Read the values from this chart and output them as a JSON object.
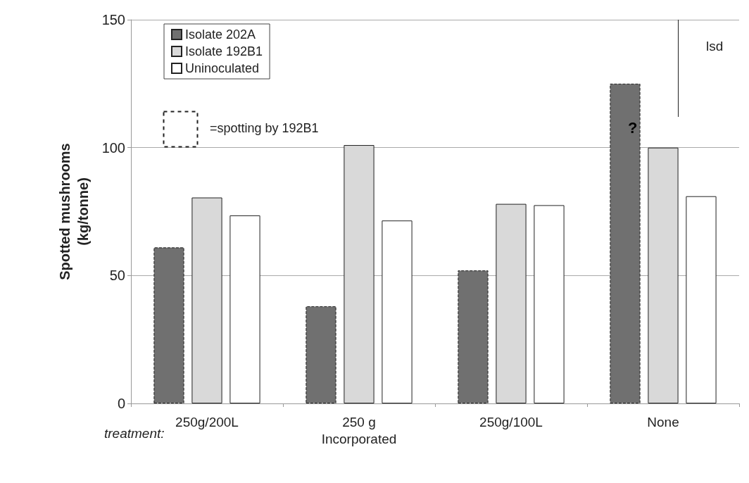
{
  "chart_data": {
    "type": "bar",
    "ylabel": "Spotted mushrooms\n(kg/tonne)",
    "xlabel": "treatment:",
    "categories": [
      "250g/200L",
      "250 g\nIncorporated",
      "250g/100L",
      "None"
    ],
    "series": [
      {
        "name": "Isolate 202A",
        "color": "#707070",
        "values": [
          61,
          38,
          52,
          125
        ],
        "line_style": "dashed"
      },
      {
        "name": "Isolate 192B1",
        "color": "#d9d9d9",
        "values": [
          80.5,
          101,
          78,
          100
        ]
      },
      {
        "name": "Uninoculated",
        "color": "#ffffff",
        "values": [
          73.5,
          71.5,
          77.5,
          81
        ]
      }
    ],
    "ylim": [
      0,
      150
    ],
    "yticks": [
      0,
      50,
      100,
      150
    ],
    "grid": "y",
    "legend": "top left",
    "annotations": [
      "=spotting by 192B1",
      "?",
      "lsd"
    ]
  }
}
